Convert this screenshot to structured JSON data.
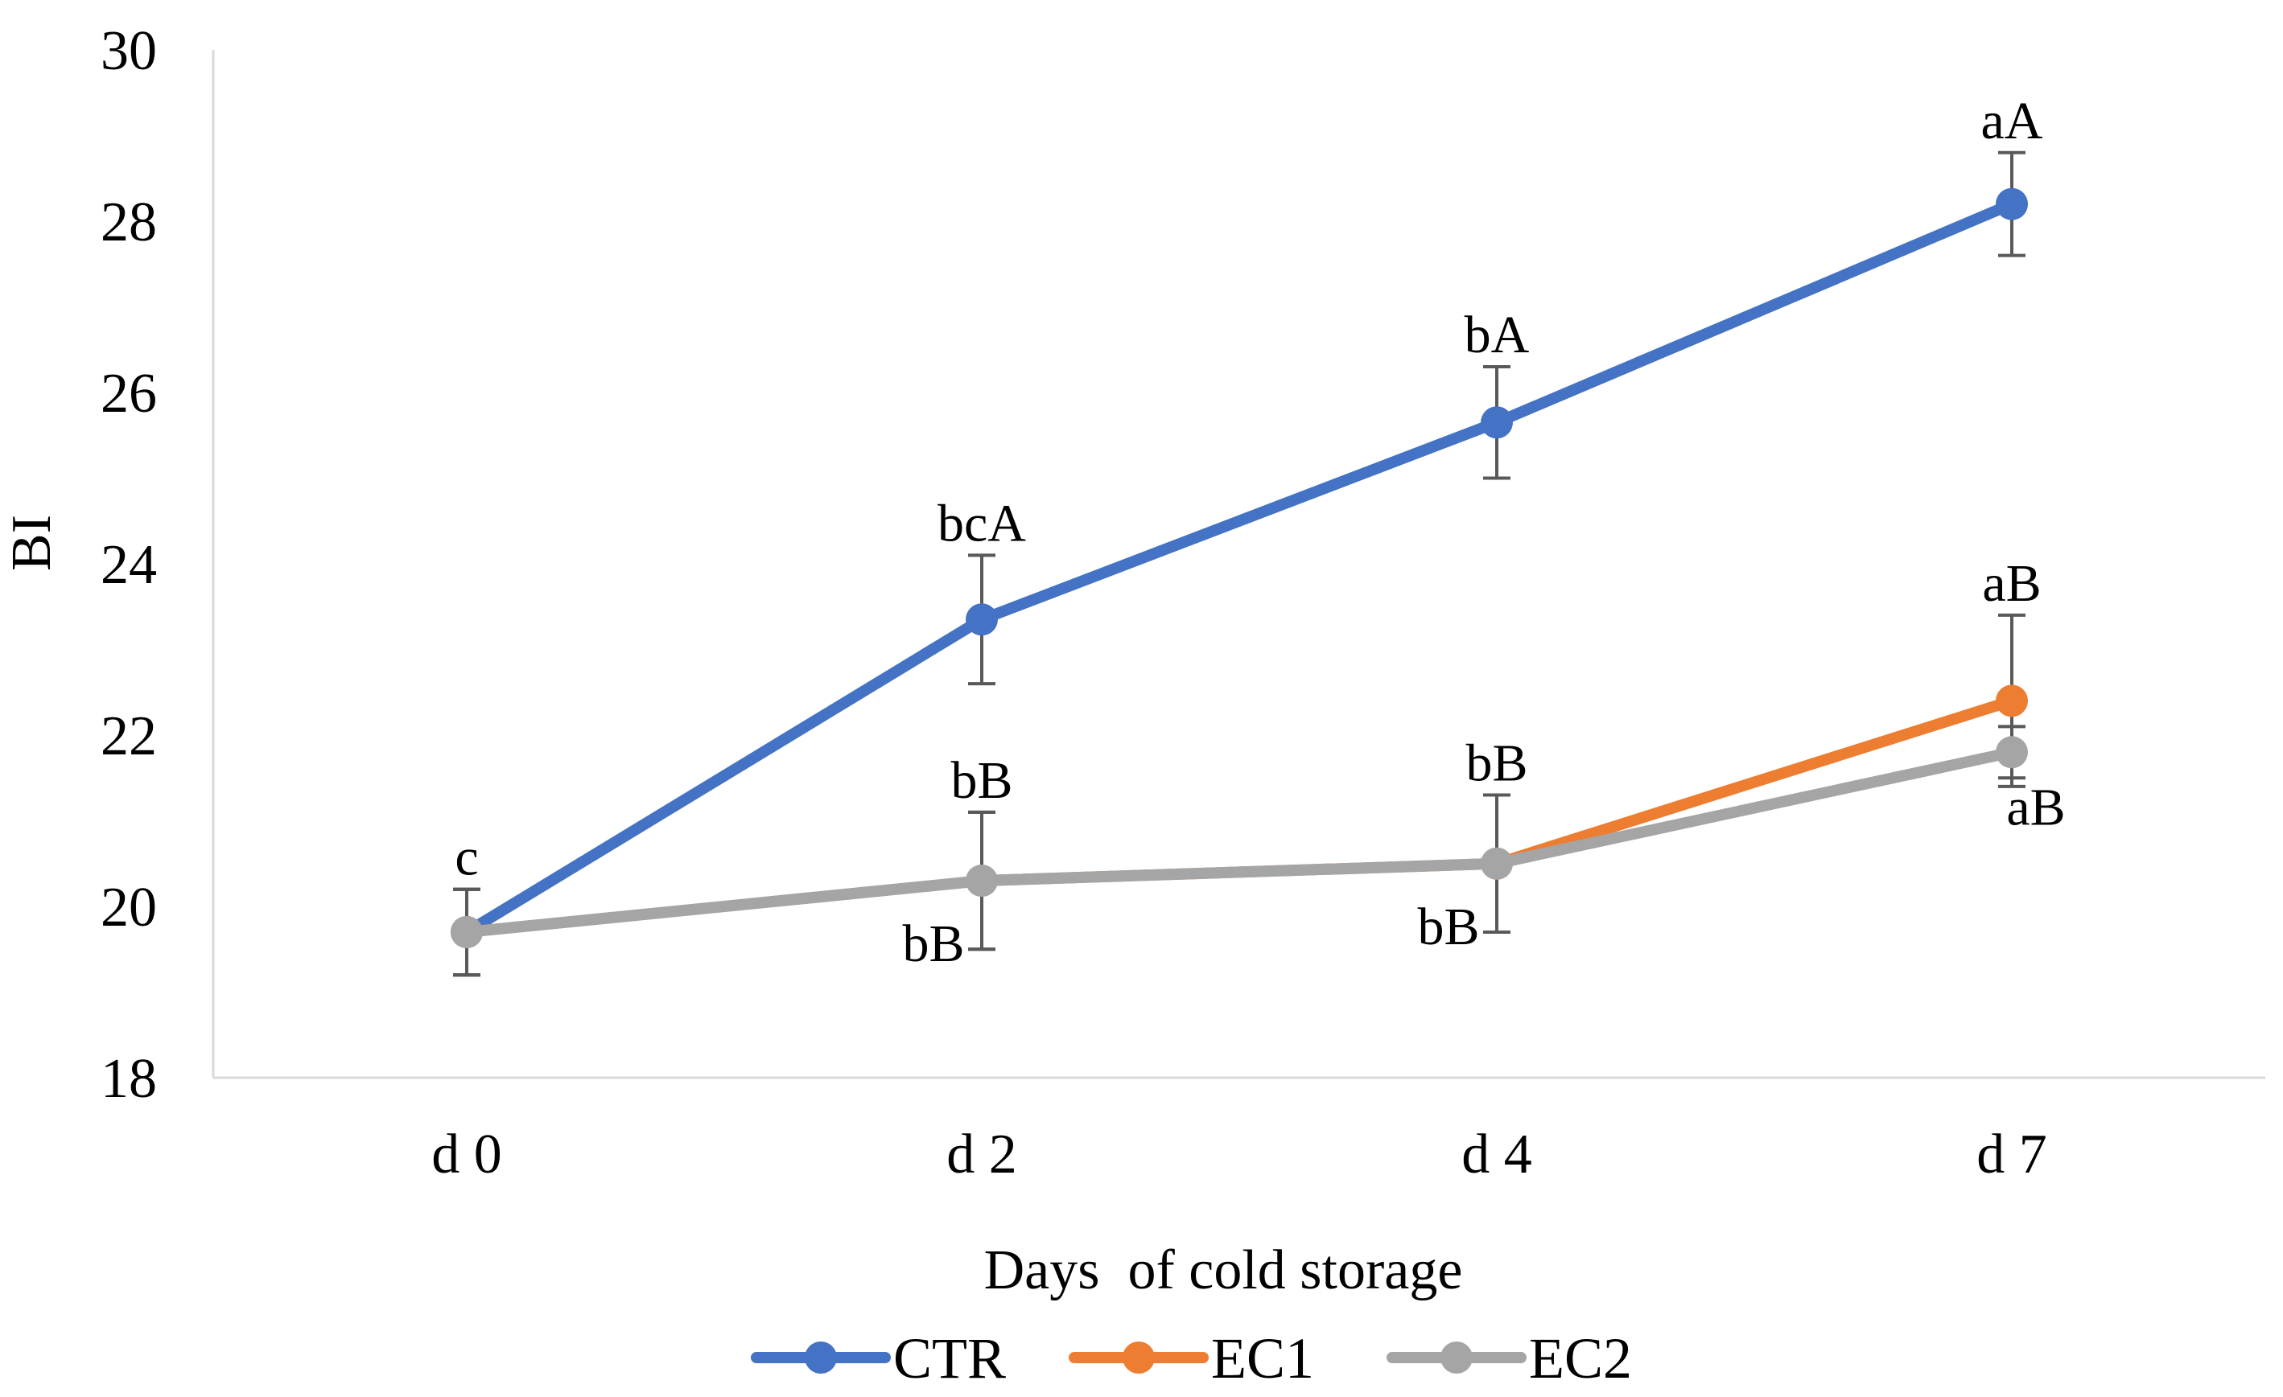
{
  "chart_data": {
    "type": "line",
    "title": "",
    "xlabel": "Days  of cold storage",
    "ylabel": "BI",
    "categories": [
      "d 0",
      "d 2",
      "d 4",
      "d 7"
    ],
    "ylim": [
      18,
      30
    ],
    "yticks": [
      18,
      20,
      22,
      24,
      26,
      28,
      30
    ],
    "grid": false,
    "legend_position": "bottom",
    "series": [
      {
        "name": "CTR",
        "color": "#4472C4",
        "values": [
          19.7,
          23.35,
          25.65,
          28.2
        ],
        "error": [
          0.5,
          0.75,
          0.65,
          0.6
        ]
      },
      {
        "name": "EC1",
        "color": "#ED7D31",
        "values": [
          19.7,
          20.3,
          20.5,
          22.4
        ],
        "error": [
          0.5,
          0.8,
          0.8,
          1.0
        ]
      },
      {
        "name": "EC2",
        "color": "#A5A5A5",
        "values": [
          19.7,
          20.3,
          20.5,
          21.8
        ],
        "error": [
          0.5,
          0.8,
          0.8,
          0.3
        ]
      }
    ],
    "annotations": [
      {
        "series": "CTR",
        "category": "d 0",
        "text": "c",
        "placement": "above"
      },
      {
        "series": "CTR",
        "category": "d 2",
        "text": "bcA",
        "placement": "above"
      },
      {
        "series": "CTR",
        "category": "d 4",
        "text": "bA",
        "placement": "above"
      },
      {
        "series": "CTR",
        "category": "d 7",
        "text": "aA",
        "placement": "above"
      },
      {
        "series": "EC1",
        "category": "d 2",
        "text": "bB",
        "placement": "above"
      },
      {
        "series": "EC1",
        "category": "d 4",
        "text": "bB",
        "placement": "above"
      },
      {
        "series": "EC1",
        "category": "d 7",
        "text": "aB",
        "placement": "above"
      },
      {
        "series": "EC2",
        "category": "d 2",
        "text": "bB",
        "placement": "below-left"
      },
      {
        "series": "EC2",
        "category": "d 4",
        "text": "bB",
        "placement": "below-left"
      },
      {
        "series": "EC2",
        "category": "d 7",
        "text": "aB",
        "placement": "below-right"
      }
    ]
  }
}
